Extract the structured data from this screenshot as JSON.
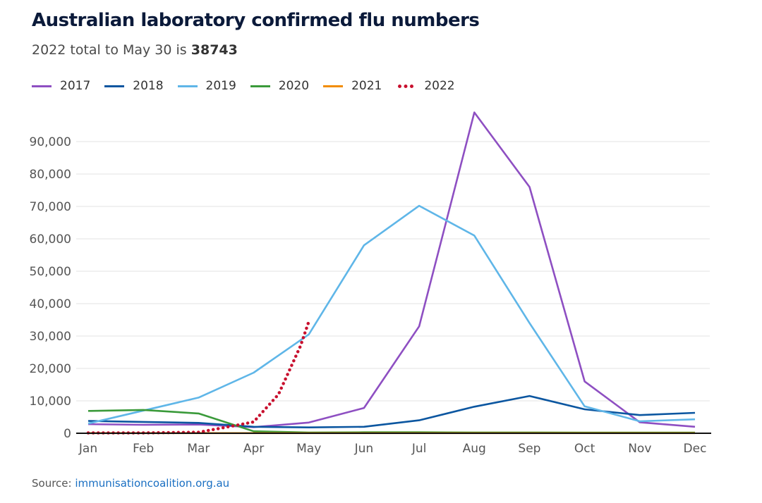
{
  "title": "Australian laboratory confirmed flu numbers",
  "subtitle_prefix": "2022 total to May 30 is ",
  "subtitle_value": "38743",
  "source_label": "Source: ",
  "source_link": "immunisationcoalition.org.au",
  "chart_data": {
    "type": "line",
    "categories": [
      "Jan",
      "Feb",
      "Mar",
      "Apr",
      "May",
      "Jun",
      "Jul",
      "Aug",
      "Sep",
      "Oct",
      "Nov",
      "Dec"
    ],
    "ylim": [
      0,
      100000
    ],
    "yticks": [
      0,
      10000,
      20000,
      30000,
      40000,
      50000,
      60000,
      70000,
      80000,
      90000
    ],
    "ytick_labels": [
      "0",
      "10,000",
      "20,000",
      "30,000",
      "40,000",
      "50,000",
      "60,000",
      "70,000",
      "80,000",
      "90,000"
    ],
    "grid": true,
    "legend_position": "top-left",
    "series": [
      {
        "name": "2017",
        "color": "#8e4fc2",
        "style": "solid",
        "values": [
          2800,
          2600,
          2700,
          1900,
          3300,
          7800,
          33000,
          99000,
          76000,
          16000,
          3400,
          2000
        ]
      },
      {
        "name": "2018",
        "color": "#0b56a0",
        "style": "solid",
        "values": [
          3800,
          3500,
          3200,
          2000,
          1800,
          2000,
          4000,
          8200,
          11500,
          7400,
          5600,
          6300
        ]
      },
      {
        "name": "2019",
        "color": "#5fb6e8",
        "style": "solid",
        "values": [
          3000,
          7000,
          11000,
          18700,
          30500,
          58000,
          70200,
          61000,
          34000,
          8300,
          3700,
          4300
        ]
      },
      {
        "name": "2020",
        "color": "#3a9a3a",
        "style": "solid",
        "values": [
          6900,
          7200,
          6100,
          600,
          250,
          300,
          300,
          250,
          250,
          200,
          200,
          200
        ]
      },
      {
        "name": "2021",
        "color": "#f28c00",
        "style": "solid",
        "values": [
          50,
          50,
          50,
          50,
          50,
          50,
          50,
          50,
          50,
          50,
          50,
          50
        ]
      },
      {
        "name": "2022",
        "color": "#c8102e",
        "style": "dotted",
        "x": [
          0,
          1,
          2,
          2.7,
          3,
          3.45,
          3.85,
          4
        ],
        "values": [
          100,
          100,
          300,
          2500,
          3500,
          12000,
          27000,
          34500
        ]
      }
    ]
  }
}
